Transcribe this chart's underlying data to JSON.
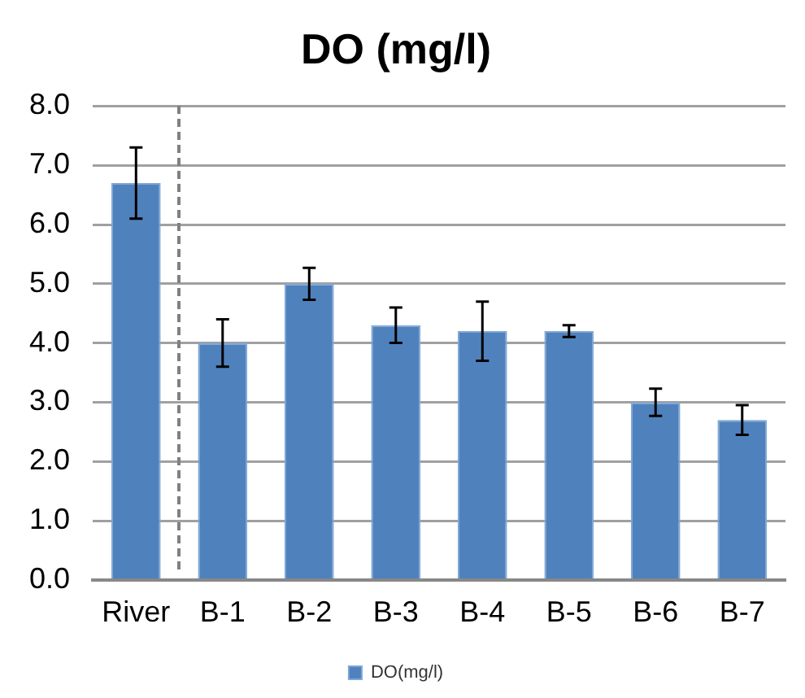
{
  "chart_data": {
    "type": "bar",
    "title": "DO (mg/l)",
    "categories": [
      "River",
      "B-1",
      "B-2",
      "B-3",
      "B-4",
      "B-5",
      "B-6",
      "B-7"
    ],
    "series": [
      {
        "name": "DO(mg/l)",
        "color": "#4f81bd",
        "values": [
          6.7,
          4.0,
          5.0,
          4.3,
          4.2,
          4.2,
          3.0,
          2.7
        ],
        "errors": [
          0.6,
          0.4,
          0.27,
          0.3,
          0.5,
          0.1,
          0.23,
          0.25
        ]
      }
    ],
    "ylim": [
      0,
      8
    ],
    "yticks": [
      {
        "value": 0,
        "label": "0.0"
      },
      {
        "value": 1,
        "label": "1.0"
      },
      {
        "value": 2,
        "label": "2.0"
      },
      {
        "value": 3,
        "label": "3.0"
      },
      {
        "value": 4,
        "label": "4.0"
      },
      {
        "value": 5,
        "label": "5.0"
      },
      {
        "value": 6,
        "label": "6.0"
      },
      {
        "value": 7,
        "label": "7.0"
      },
      {
        "value": 8,
        "label": "8.0"
      }
    ],
    "grid": "y",
    "legend": "bottom"
  }
}
